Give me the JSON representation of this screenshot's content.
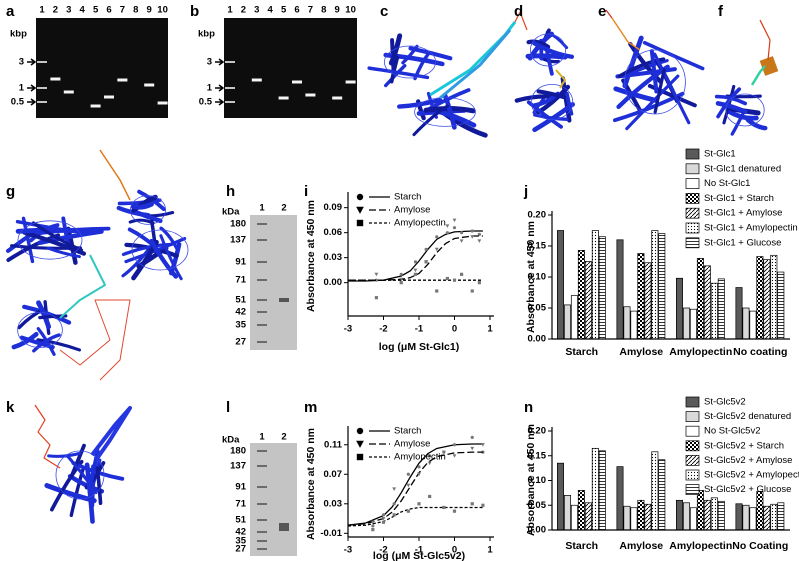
{
  "panels": [
    "a",
    "b",
    "c",
    "d",
    "e",
    "f",
    "g",
    "h",
    "i",
    "j",
    "k",
    "l",
    "m",
    "n"
  ],
  "gels": [
    {
      "unit": "kbp",
      "lanes": [
        "1",
        "2",
        "3",
        "4",
        "5",
        "6",
        "7",
        "8",
        "9",
        "10"
      ],
      "markers": [
        "3",
        "1",
        "0.5"
      ]
    },
    {
      "unit": "kbp",
      "lanes": [
        "1",
        "2",
        "3",
        "4",
        "5",
        "6",
        "7",
        "8",
        "9",
        "10"
      ],
      "markers": [
        "3",
        "1",
        "0.5"
      ]
    },
    {
      "unit": "kDa",
      "lanes": [
        "1",
        "2"
      ],
      "markers": [
        "180",
        "137",
        "91",
        "71",
        "51",
        "42",
        "35",
        "27"
      ]
    },
    {
      "unit": "kDa",
      "lanes": [
        "1",
        "2"
      ],
      "markers": [
        "180",
        "137",
        "91",
        "71",
        "51",
        "42",
        "35",
        "27"
      ]
    }
  ],
  "chart_data": [
    {
      "type": "line",
      "ylabel": "Absorbance at 450 nm",
      "xlabel": "log (μM St-Glc1)",
      "xlim": [
        -3,
        1
      ],
      "xticks": [
        -3,
        -2,
        -1,
        0,
        1
      ],
      "ylim": [
        -0.04,
        0.104
      ],
      "yticks": [
        {
          "value": 0,
          "label": "0.00"
        },
        {
          "value": 0.03,
          "label": "0.03"
        },
        {
          "value": 0.06,
          "label": "0.06"
        },
        {
          "value": 0.09,
          "label": "0.09"
        }
      ],
      "fit_x": [
        -3,
        -2.5,
        -2,
        -1.5,
        -1.25,
        -1,
        -0.75,
        -0.5,
        -0.25,
        0,
        0.5,
        0.8
      ],
      "series": [
        {
          "name": "Starch",
          "marker": "circle",
          "dash": "solid",
          "color": "#000000",
          "x": [
            -2.2,
            -1.5,
            -1.1,
            -0.8,
            -0.5,
            -0.2,
            0,
            0.2,
            0.5,
            0.7
          ],
          "values": [
            0.003,
            0.01,
            0.025,
            0.04,
            0.055,
            0.06,
            0.066,
            0.06,
            0.062,
            0.058
          ],
          "fit": [
            0.002,
            0.002,
            0.003,
            0.008,
            0.014,
            0.026,
            0.04,
            0.052,
            0.058,
            0.061,
            0.062,
            0.062
          ]
        },
        {
          "name": "Amylose",
          "marker": "triangle-down",
          "dash": "long",
          "color": "#000000",
          "x": [
            -2.2,
            -1.5,
            -1.1,
            -0.8,
            -0.5,
            -0.2,
            0,
            0.2,
            0.5,
            0.7
          ],
          "values": [
            0.01,
            0.004,
            0.015,
            0.025,
            0.04,
            0.068,
            0.075,
            0.05,
            0.055,
            0.05
          ],
          "fit": [
            0.003,
            0.003,
            0.003,
            0.004,
            0.006,
            0.011,
            0.022,
            0.036,
            0.047,
            0.053,
            0.056,
            0.056
          ]
        },
        {
          "name": "Amylopectin",
          "marker": "square",
          "dash": "short",
          "color": "#000000",
          "x": [
            -2.2,
            -1.5,
            -1.1,
            -0.8,
            -0.5,
            -0.2,
            0,
            0.2,
            0.5,
            0.7
          ],
          "values": [
            -0.018,
            0.0,
            0.01,
            0.025,
            -0.01,
            0.005,
            0.003,
            0.01,
            -0.01,
            0.0
          ],
          "fit": [
            0.003,
            0.003,
            0.003,
            0.003,
            0.003,
            0.003,
            0.003,
            0.003,
            0.003,
            0.003,
            0.003,
            0.003
          ]
        }
      ]
    },
    {
      "type": "bar",
      "ylabel": "Absorbance at 450 nm",
      "categories": [
        "Starch",
        "Amylose",
        "Amylopectin",
        "No coating"
      ],
      "ylim": [
        0,
        0.2
      ],
      "yticks": [
        {
          "value": 0,
          "label": "0.00"
        },
        {
          "value": 0.05,
          "label": "0.05"
        },
        {
          "value": 0.1,
          "label": "0.10"
        },
        {
          "value": 0.15,
          "label": "0.15"
        },
        {
          "value": 0.2,
          "label": "0.20"
        }
      ],
      "series": [
        {
          "name": "St-Glc1",
          "color": "#5a5a5a",
          "pattern": "none",
          "values": [
            0.175,
            0.16,
            0.098,
            0.083
          ]
        },
        {
          "name": "St-Glc1 denatured",
          "color": "#d9d9d9",
          "pattern": "none",
          "values": [
            0.055,
            0.052,
            0.05,
            0.05
          ]
        },
        {
          "name": "No St-Glc1",
          "color": "#ffffff",
          "pattern": "none",
          "values": [
            0.07,
            0.045,
            0.048,
            0.045
          ]
        },
        {
          "name": "St-Glc1 + Starch",
          "color": "#ffffff",
          "pattern": "checker",
          "values": [
            0.143,
            0.138,
            0.13,
            0.133
          ]
        },
        {
          "name": "St-Glc1 + Amylose",
          "color": "#ffffff",
          "pattern": "diagonal",
          "values": [
            0.125,
            0.123,
            0.118,
            0.128
          ]
        },
        {
          "name": "St-Glc1 + Amylopectin",
          "color": "#ffffff",
          "pattern": "dots",
          "values": [
            0.175,
            0.175,
            0.09,
            0.135
          ]
        },
        {
          "name": "St-Glc1 + Glucose",
          "color": "#ffffff",
          "pattern": "hlines",
          "values": [
            0.165,
            0.17,
            0.097,
            0.108
          ]
        }
      ]
    },
    {
      "type": "line",
      "ylabel": "Absorbance at 450 nm",
      "xlabel": "log (μM St-Glc5v2)",
      "xlim": [
        -3,
        1
      ],
      "xticks": [
        -3,
        -2,
        -1,
        0,
        1
      ],
      "ylim": [
        -0.015,
        0.13
      ],
      "yticks": [
        -0.01,
        0.03,
        0.07,
        0.11
      ],
      "fit_x": [
        -3,
        -2.5,
        -2,
        -1.75,
        -1.5,
        -1.25,
        -1,
        -0.75,
        -0.5,
        0,
        0.5,
        0.8
      ],
      "series": [
        {
          "name": "Starch",
          "marker": "circle",
          "dash": "solid",
          "color": "#000000",
          "x": [
            -2.3,
            -2,
            -1.7,
            -1.3,
            -1,
            -0.7,
            -0.3,
            0,
            0.5,
            0.8
          ],
          "values": [
            0.0,
            0.015,
            0.03,
            0.07,
            0.08,
            0.095,
            0.1,
            0.11,
            0.12,
            0.1
          ],
          "fit": [
            0.001,
            0.004,
            0.014,
            0.026,
            0.045,
            0.066,
            0.085,
            0.098,
            0.105,
            0.11,
            0.111,
            0.111
          ]
        },
        {
          "name": "Amylose",
          "marker": "triangle-down",
          "dash": "long",
          "color": "#000000",
          "x": [
            -2.3,
            -2,
            -1.7,
            -1.3,
            -1,
            -0.7,
            -0.3,
            0,
            0.5,
            0.8
          ],
          "values": [
            0.005,
            0.01,
            0.05,
            0.055,
            0.07,
            0.085,
            0.1,
            0.095,
            0.105,
            0.11
          ],
          "fit": [
            0.001,
            0.003,
            0.01,
            0.019,
            0.034,
            0.053,
            0.072,
            0.086,
            0.094,
            0.099,
            0.1,
            0.1
          ]
        },
        {
          "name": "Amylopectin",
          "marker": "square",
          "dash": "short",
          "color": "#000000",
          "x": [
            -2.3,
            -2,
            -1.7,
            -1.3,
            -1,
            -0.7,
            -0.3,
            0,
            0.5,
            0.8
          ],
          "values": [
            -0.005,
            0.005,
            0.015,
            0.02,
            0.03,
            0.04,
            0.025,
            0.02,
            0.03,
            0.028
          ],
          "fit": [
            0.0,
            0.001,
            0.006,
            0.012,
            0.019,
            0.023,
            0.025,
            0.025,
            0.025,
            0.025,
            0.025,
            0.025
          ]
        }
      ]
    },
    {
      "type": "bar",
      "ylabel": "Absorbance at 450 nm",
      "categories": [
        "Starch",
        "Amylose",
        "Amylopectin",
        "No Coating"
      ],
      "ylim": [
        0,
        0.2
      ],
      "yticks": [
        {
          "value": 0,
          "label": "0.00"
        },
        {
          "value": 0.05,
          "label": "0.05"
        },
        {
          "value": 0.1,
          "label": "0.10"
        },
        {
          "value": 0.15,
          "label": "0.15"
        },
        {
          "value": 0.2,
          "label": "0.20"
        }
      ],
      "series": [
        {
          "name": "St-Glc5v2",
          "color": "#5a5a5a",
          "pattern": "none",
          "values": [
            0.135,
            0.128,
            0.06,
            0.053
          ]
        },
        {
          "name": "St-Glc5v2 denatured",
          "color": "#d9d9d9",
          "pattern": "none",
          "values": [
            0.07,
            0.048,
            0.055,
            0.05
          ]
        },
        {
          "name": "No St-Glc5v2",
          "color": "#ffffff",
          "pattern": "none",
          "values": [
            0.05,
            0.045,
            0.045,
            0.045
          ]
        },
        {
          "name": "St-Glc5v2 + Starch",
          "color": "#ffffff",
          "pattern": "checker",
          "values": [
            0.08,
            0.06,
            0.08,
            0.078
          ]
        },
        {
          "name": "St-Glc5v2 + Amylose",
          "color": "#ffffff",
          "pattern": "diagonal",
          "values": [
            0.055,
            0.052,
            0.06,
            0.048
          ]
        },
        {
          "name": "St-Glc5v2 + Amylopectin",
          "color": "#ffffff",
          "pattern": "dots",
          "values": [
            0.165,
            0.158,
            0.065,
            0.052
          ]
        },
        {
          "name": "St-Glc5v2 + Glucose",
          "color": "#ffffff",
          "pattern": "hlines",
          "values": [
            0.16,
            0.142,
            0.058,
            0.055
          ]
        }
      ]
    }
  ]
}
